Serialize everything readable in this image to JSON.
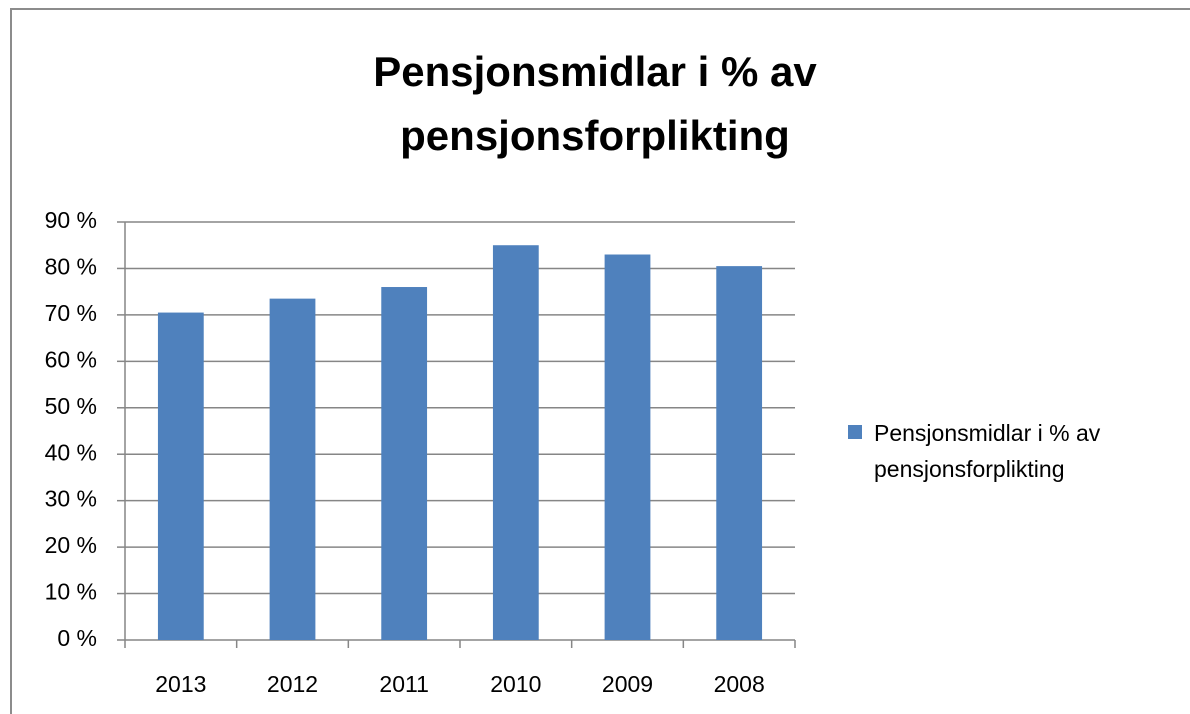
{
  "chart_data": {
    "type": "bar",
    "title": "Pensjonsmidlar i % av pensjonsforplikting",
    "categories": [
      "2013",
      "2012",
      "2011",
      "2010",
      "2009",
      "2008"
    ],
    "series": [
      {
        "name": "Pensjonsmidlar i % av pensjonsforplikting",
        "color": "#4f81bd",
        "values": [
          70.5,
          73.5,
          76,
          85,
          83,
          80.5
        ]
      }
    ],
    "ylim": [
      0,
      90
    ],
    "yticks": [
      {
        "value": 0,
        "label": "0 %"
      },
      {
        "value": 10,
        "label": "10 %"
      },
      {
        "value": 20,
        "label": "20 %"
      },
      {
        "value": 30,
        "label": "30 %"
      },
      {
        "value": 40,
        "label": "40 %"
      },
      {
        "value": 50,
        "label": "50 %"
      },
      {
        "value": 60,
        "label": "60 %"
      },
      {
        "value": 70,
        "label": "70 %"
      },
      {
        "value": 80,
        "label": "80 %"
      },
      {
        "value": 90,
        "label": "90 %"
      }
    ],
    "grid": true,
    "legend": "right"
  }
}
